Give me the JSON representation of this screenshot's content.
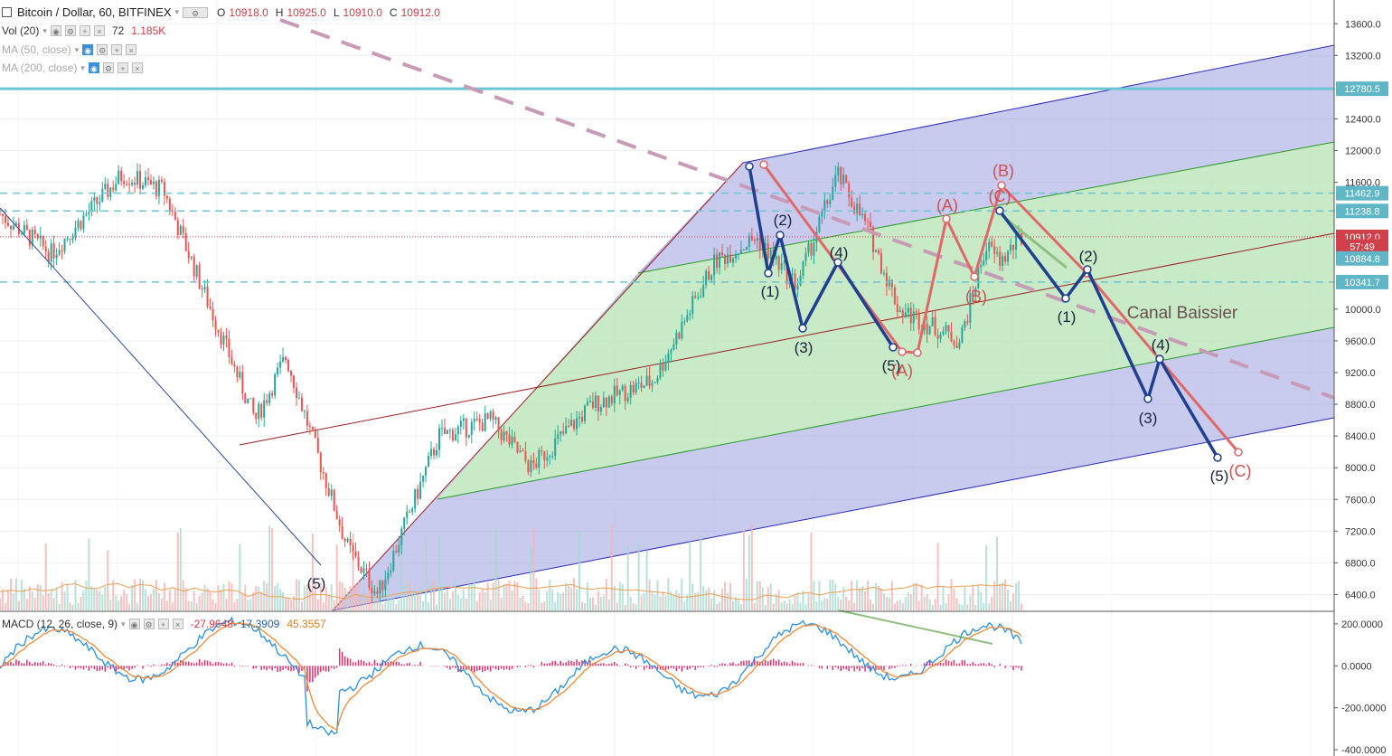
{
  "header": {
    "symbol": "Bitcoin / Dollar, 60, BITFINEX",
    "open_label": "O",
    "open": "10918.0",
    "high_label": "H",
    "high": "10925.0",
    "low_label": "L",
    "low": "10910.0",
    "close_label": "C",
    "close": "10912.0",
    "vol_label": "Vol (20)",
    "vol_value": "72",
    "vol_ma": "1.185K",
    "ma50_label": "MA (50, close)",
    "ma200_label": "MA (200, close)",
    "macd_label": "MACD (12, 26, close, 9)",
    "macd_hist": "-27.9648",
    "macd_line": "17.3909",
    "macd_signal": "45.3557"
  },
  "price_axis": {
    "ticks": [
      "13600.0",
      "13200.0",
      "12400.0",
      "12000.0",
      "11600.0",
      "10000.0",
      "9600.0",
      "9200.0",
      "8800.0",
      "8400.0",
      "8000.0",
      "7600.0",
      "7200.0",
      "6800.0",
      "6400.0"
    ],
    "tick_values": [
      13600,
      13200,
      12400,
      12000,
      11600,
      10000,
      9600,
      9200,
      8800,
      8400,
      8000,
      7600,
      7200,
      6800,
      6400
    ]
  },
  "price_tags": [
    {
      "label": "12780.5",
      "value": 12780.5,
      "color": "#5fb6c6"
    },
    {
      "label": "11462.9",
      "value": 11462.9,
      "color": "#5fb6c6"
    },
    {
      "label": "11238.8",
      "value": 11238.8,
      "color": "#5fb6c6"
    },
    {
      "label": "10912.0",
      "value": 10912.0,
      "color": "#d0404a"
    },
    {
      "label": "57:49",
      "value": 10790,
      "color": "#d0404a"
    },
    {
      "label": "10884.8",
      "value": 10640,
      "color": "#5fb6c6"
    },
    {
      "label": "10341.7",
      "value": 10341.7,
      "color": "#5fb6c6"
    }
  ],
  "macd_axis": {
    "ticks": [
      "200.0000",
      "0.0000",
      "-200.0000",
      "-400.0000"
    ],
    "tick_values": [
      200,
      0,
      -200,
      -400
    ]
  },
  "annotations": {
    "canal": "Canal Baissier",
    "blue_waves": [
      "(1)",
      "(2)",
      "(3)",
      "(4)",
      "(5)"
    ],
    "red_waves_small": [
      "(A)",
      "(B)",
      "(C)"
    ],
    "low_wave": "(5)",
    "top_wave_b": "(B)",
    "top_wave_a": "(A)",
    "top_wave_c": "(C)",
    "mid_wave_b": "(B)",
    "low_red_a": "(A)",
    "blue_waves_right": [
      "(1)",
      "(2)",
      "(3)",
      "(4)",
      "(5)"
    ],
    "red_final_c": "(C)",
    "blue_small_5": "(5)"
  },
  "colors": {
    "bull": "#26a69a",
    "bear": "#ef5350",
    "pitch_blue": "#8888dd",
    "pitch_green": "#a8dca8",
    "wave_blue": "#1f3f8f",
    "wave_red": "#e06868",
    "dashed_purple": "#c79ab5",
    "hline": "#6cc5d4",
    "macd_line": "#2b8fe0",
    "signal_line": "#f08a3a",
    "hist": "#e0306a"
  },
  "chart_data": {
    "type": "candlestick",
    "title": "Bitcoin / Dollar, 60, BITFINEX",
    "y_range": [
      6200,
      13900
    ],
    "macd_range": [
      -430,
      260
    ],
    "key_levels": [
      12780.5,
      11462.9,
      11238.8,
      10912.0,
      10884.8,
      10341.7
    ],
    "price_path_approx": [
      {
        "t": 0,
        "v": 11200
      },
      {
        "t": 0.05,
        "v": 10700
      },
      {
        "t": 0.12,
        "v": 11700
      },
      {
        "t": 0.16,
        "v": 11500
      },
      {
        "t": 0.2,
        "v": 10200
      },
      {
        "t": 0.25,
        "v": 8600
      },
      {
        "t": 0.28,
        "v": 9400
      },
      {
        "t": 0.34,
        "v": 7000
      },
      {
        "t": 0.37,
        "v": 6400
      },
      {
        "t": 0.43,
        "v": 8400
      },
      {
        "t": 0.48,
        "v": 8600
      },
      {
        "t": 0.52,
        "v": 8000
      },
      {
        "t": 0.58,
        "v": 8800
      },
      {
        "t": 0.64,
        "v": 9100
      },
      {
        "t": 0.7,
        "v": 10600
      },
      {
        "t": 0.74,
        "v": 10900
      },
      {
        "t": 0.78,
        "v": 10300
      },
      {
        "t": 0.82,
        "v": 11700
      },
      {
        "t": 0.85,
        "v": 11000
      },
      {
        "t": 0.88,
        "v": 10000
      },
      {
        "t": 0.91,
        "v": 9800
      },
      {
        "t": 0.94,
        "v": 9600
      },
      {
        "t": 0.965,
        "v": 10800
      },
      {
        "t": 0.98,
        "v": 10600
      },
      {
        "t": 1.0,
        "v": 10912
      }
    ]
  }
}
